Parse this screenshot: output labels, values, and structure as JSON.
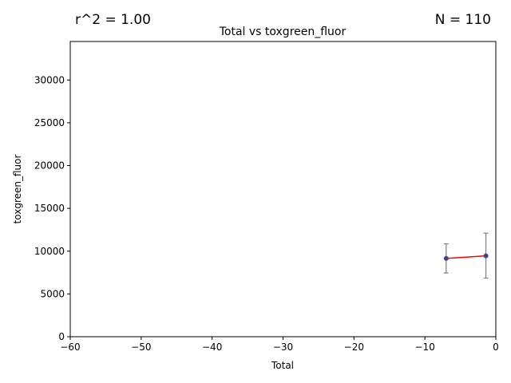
{
  "chart_data": {
    "type": "scatter",
    "title": "Total vs toxgreen_fluor",
    "xlabel": "Total",
    "ylabel": "toxgreen_fluor",
    "xlim": [
      -60,
      0
    ],
    "ylim": [
      0,
      34500
    ],
    "xticks": [
      -60,
      -50,
      -40,
      -30,
      -20,
      -10,
      0
    ],
    "xtick_labels": [
      "−60",
      "−50",
      "−40",
      "−30",
      "−20",
      "−10",
      "0"
    ],
    "yticks": [
      0,
      5000,
      10000,
      15000,
      20000,
      25000,
      30000
    ],
    "ytick_labels": [
      "0",
      "5000",
      "10000",
      "15000",
      "20000",
      "25000",
      "30000"
    ],
    "grid": false,
    "annotations": {
      "r2": "r^2 = 1.00",
      "n": "N = 110"
    },
    "series": [
      {
        "points": [
          {
            "x": -7.0,
            "y": 9150,
            "err_low": 7450,
            "err_high": 10850
          },
          {
            "x": -1.4,
            "y": 9450,
            "err_low": 6850,
            "err_high": 12100
          }
        ],
        "marker_color": "#483d8b",
        "fit_color": "#ff0000",
        "errorbar_color": "#7f7f7f"
      }
    ]
  }
}
